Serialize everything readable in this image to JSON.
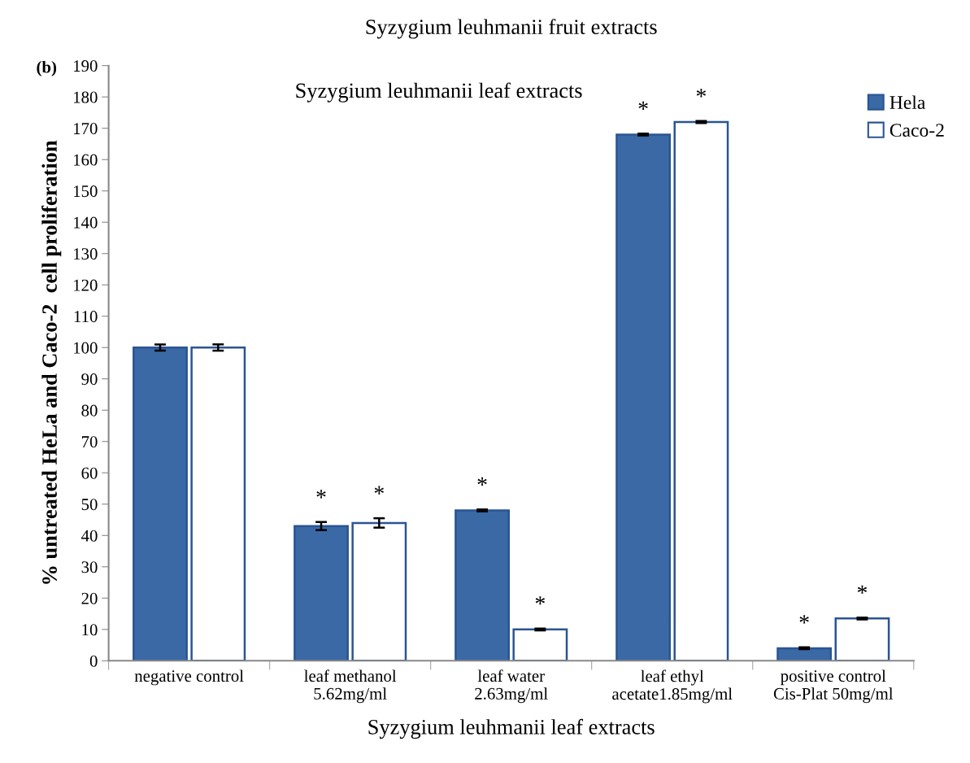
{
  "chart_data": {
    "type": "bar",
    "title": "Syzygium leuhmanii fruit extracts",
    "xlabel": "Syzygium leuhmanii leaf extracts",
    "ylabel": "% untreated HeLa and Caco-2  cell proliferation",
    "annotations": [
      "(b)",
      "Syzygium leuhmanii leaf extracts"
    ],
    "categories": [
      "negative control",
      "leaf methanol\n5.62mg/ml",
      "leaf water\n2.63mg/ml",
      "leaf ethyl\nacetate1.85mg/ml",
      "positive control\nCis-Plat 50mg/ml"
    ],
    "series": [
      {
        "name": "Hela",
        "color": "#3a69a6",
        "values": [
          100,
          43,
          48,
          168,
          4
        ],
        "errors": [
          1,
          1.3,
          0.3,
          0.3,
          0.3
        ],
        "value_labels": [
          null,
          "*",
          "*",
          "*",
          "*"
        ]
      },
      {
        "name": "Caco-2",
        "color": "#ffffff",
        "values": [
          100,
          44,
          10,
          172,
          13.5
        ],
        "errors": [
          1,
          1.5,
          0.3,
          0.3,
          0.3
        ],
        "value_labels": [
          null,
          "*",
          "*",
          "*",
          "*"
        ]
      }
    ],
    "ylim": [
      0,
      190
    ],
    "yticks": [
      0,
      10,
      20,
      30,
      40,
      50,
      60,
      70,
      80,
      90,
      100,
      110,
      120,
      130,
      140,
      150,
      160,
      170,
      180,
      190
    ],
    "grid": false,
    "legend": "top right"
  }
}
